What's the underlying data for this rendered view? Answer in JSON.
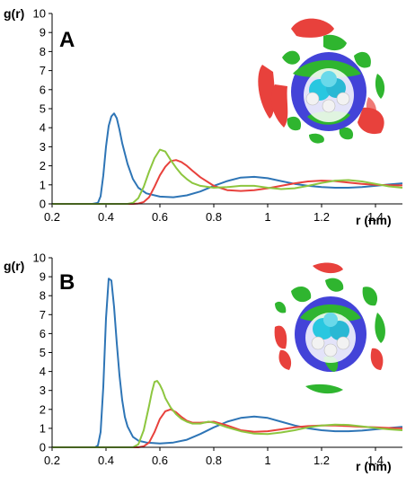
{
  "chart_data": [
    {
      "type": "line",
      "panel_label": "A",
      "xlabel": "r (nm)",
      "ylabel": "g(r)",
      "xlim": [
        0.2,
        1.5
      ],
      "ylim": [
        0,
        10
      ],
      "xticks": [
        "0.2",
        "0.4",
        "0.6",
        "0.8",
        "1",
        "1.2",
        "1.4"
      ],
      "yticks": [
        "0",
        "1",
        "2",
        "3",
        "4",
        "5",
        "6",
        "7",
        "8",
        "9",
        "10"
      ],
      "grid": false,
      "legend": "none",
      "series": [
        {
          "color": "#2e75b6",
          "x": [
            0.2,
            0.35,
            0.37,
            0.38,
            0.39,
            0.4,
            0.41,
            0.42,
            0.43,
            0.44,
            0.45,
            0.46,
            0.48,
            0.5,
            0.52,
            0.55,
            0.6,
            0.65,
            0.7,
            0.75,
            0.8,
            0.85,
            0.9,
            0.95,
            1.0,
            1.05,
            1.1,
            1.15,
            1.2,
            1.25,
            1.3,
            1.35,
            1.4,
            1.45,
            1.5
          ],
          "y": [
            0,
            0,
            0.05,
            0.4,
            1.5,
            3.0,
            4.1,
            4.6,
            4.75,
            4.5,
            3.9,
            3.2,
            2.1,
            1.3,
            0.85,
            0.55,
            0.38,
            0.35,
            0.45,
            0.65,
            0.95,
            1.2,
            1.38,
            1.42,
            1.35,
            1.2,
            1.05,
            0.95,
            0.88,
            0.85,
            0.85,
            0.88,
            0.95,
            1.02,
            1.08
          ]
        },
        {
          "color": "#e8413c",
          "x": [
            0.2,
            0.5,
            0.52,
            0.54,
            0.56,
            0.58,
            0.6,
            0.62,
            0.64,
            0.66,
            0.68,
            0.7,
            0.72,
            0.75,
            0.8,
            0.85,
            0.9,
            0.95,
            1.0,
            1.05,
            1.1,
            1.15,
            1.2,
            1.25,
            1.3,
            1.35,
            1.4,
            1.45,
            1.5
          ],
          "y": [
            0,
            0,
            0.02,
            0.1,
            0.35,
            0.9,
            1.5,
            1.95,
            2.25,
            2.3,
            2.2,
            2.0,
            1.75,
            1.4,
            0.95,
            0.72,
            0.68,
            0.72,
            0.82,
            0.95,
            1.08,
            1.18,
            1.22,
            1.2,
            1.12,
            1.05,
            1.0,
            0.98,
            0.97
          ]
        },
        {
          "color": "#8dc63f",
          "x": [
            0.2,
            0.48,
            0.5,
            0.52,
            0.54,
            0.56,
            0.58,
            0.6,
            0.62,
            0.64,
            0.66,
            0.68,
            0.7,
            0.72,
            0.75,
            0.8,
            0.85,
            0.9,
            0.95,
            1.0,
            1.05,
            1.1,
            1.15,
            1.2,
            1.25,
            1.3,
            1.35,
            1.4,
            1.45,
            1.5
          ],
          "y": [
            0,
            0,
            0.05,
            0.3,
            0.9,
            1.7,
            2.4,
            2.85,
            2.75,
            2.3,
            1.9,
            1.55,
            1.3,
            1.1,
            0.95,
            0.85,
            0.88,
            0.95,
            0.95,
            0.85,
            0.78,
            0.82,
            0.95,
            1.1,
            1.22,
            1.25,
            1.18,
            1.05,
            0.92,
            0.85
          ]
        }
      ]
    },
    {
      "type": "line",
      "panel_label": "B",
      "xlabel": "r (nm)",
      "ylabel": "g(r)",
      "xlim": [
        0.2,
        1.5
      ],
      "ylim": [
        0,
        10
      ],
      "xticks": [
        "0.2",
        "0.4",
        "0.6",
        "0.8",
        "1",
        "1.2",
        "1.4"
      ],
      "yticks": [
        "0",
        "1",
        "2",
        "3",
        "4",
        "5",
        "6",
        "7",
        "8",
        "9",
        "10"
      ],
      "grid": false,
      "legend": "none",
      "series": [
        {
          "color": "#2e75b6",
          "x": [
            0.2,
            0.36,
            0.37,
            0.38,
            0.39,
            0.4,
            0.41,
            0.42,
            0.43,
            0.44,
            0.45,
            0.46,
            0.47,
            0.48,
            0.5,
            0.52,
            0.55,
            0.6,
            0.65,
            0.7,
            0.75,
            0.8,
            0.85,
            0.9,
            0.95,
            1.0,
            1.05,
            1.1,
            1.15,
            1.2,
            1.25,
            1.3,
            1.35,
            1.4,
            1.45,
            1.5
          ],
          "y": [
            0,
            0,
            0.1,
            0.8,
            3.2,
            6.8,
            8.9,
            8.8,
            7.4,
            5.5,
            3.8,
            2.5,
            1.6,
            1.1,
            0.55,
            0.35,
            0.25,
            0.2,
            0.25,
            0.4,
            0.7,
            1.05,
            1.35,
            1.55,
            1.62,
            1.55,
            1.35,
            1.15,
            1.0,
            0.9,
            0.85,
            0.85,
            0.88,
            0.95,
            1.02,
            1.08
          ]
        },
        {
          "color": "#e8413c",
          "x": [
            0.2,
            0.52,
            0.54,
            0.56,
            0.58,
            0.6,
            0.62,
            0.64,
            0.66,
            0.68,
            0.7,
            0.72,
            0.75,
            0.8,
            0.85,
            0.9,
            0.95,
            1.0,
            1.05,
            1.1,
            1.15,
            1.2,
            1.25,
            1.3,
            1.35,
            1.4,
            1.45,
            1.5
          ],
          "y": [
            0,
            0,
            0.05,
            0.25,
            0.8,
            1.5,
            1.9,
            2.0,
            1.85,
            1.6,
            1.4,
            1.3,
            1.3,
            1.35,
            1.15,
            0.9,
            0.82,
            0.85,
            0.95,
            1.05,
            1.12,
            1.15,
            1.15,
            1.12,
            1.08,
            1.05,
            1.02,
            1.0
          ]
        },
        {
          "color": "#8dc63f",
          "x": [
            0.2,
            0.5,
            0.52,
            0.54,
            0.56,
            0.57,
            0.58,
            0.59,
            0.6,
            0.61,
            0.62,
            0.64,
            0.66,
            0.68,
            0.7,
            0.72,
            0.75,
            0.78,
            0.8,
            0.85,
            0.9,
            0.95,
            1.0,
            1.05,
            1.1,
            1.15,
            1.2,
            1.25,
            1.3,
            1.35,
            1.4,
            1.45,
            1.5
          ],
          "y": [
            0,
            0,
            0.15,
            0.9,
            2.2,
            2.9,
            3.45,
            3.5,
            3.3,
            3.0,
            2.6,
            2.1,
            1.75,
            1.5,
            1.35,
            1.25,
            1.25,
            1.35,
            1.3,
            1.05,
            0.85,
            0.72,
            0.7,
            0.78,
            0.9,
            1.05,
            1.15,
            1.2,
            1.18,
            1.1,
            1.02,
            0.95,
            0.9
          ]
        }
      ]
    }
  ]
}
